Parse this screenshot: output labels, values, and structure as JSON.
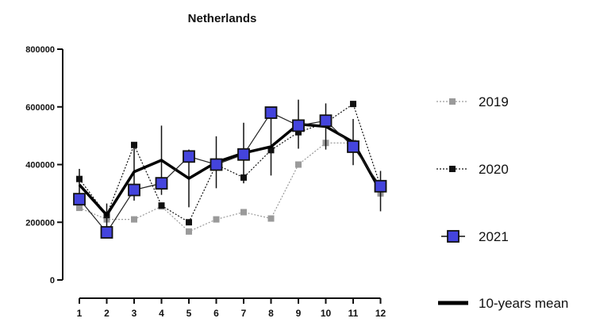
{
  "chart_data": {
    "type": "line",
    "title": "Netherlands",
    "xlabel": "",
    "ylabel": "",
    "x": [
      1,
      2,
      3,
      4,
      5,
      6,
      7,
      8,
      9,
      10,
      11,
      12
    ],
    "x_tick_labels": [
      "1",
      "2",
      "3",
      "4",
      "5",
      "6",
      "7",
      "8",
      "9",
      "10",
      "11",
      "12"
    ],
    "ylim": [
      0,
      800000
    ],
    "y_ticks": [
      0,
      200000,
      400000,
      600000,
      800000
    ],
    "y_tick_labels": [
      "0",
      "200000",
      "400000",
      "600000",
      "800000"
    ],
    "grid": false,
    "legend_position": "right",
    "series": [
      {
        "name": "2019",
        "style": "dotted-square",
        "color": "#9a9a9a",
        "values": [
          250000,
          210000,
          210000,
          255000,
          168000,
          210000,
          235000,
          213000,
          400000,
          475000,
          475000,
          300000
        ]
      },
      {
        "name": "2020",
        "style": "dotted-square",
        "color": "#111111",
        "values": [
          350000,
          225000,
          468000,
          258000,
          200000,
          400000,
          355000,
          450000,
          512000,
          545000,
          610000,
          325000
        ]
      },
      {
        "name": "2021",
        "style": "solid-square-blue",
        "color": "#4444dd",
        "values": [
          280000,
          165000,
          312000,
          335000,
          428000,
          400000,
          435000,
          580000,
          535000,
          552000,
          462000,
          325000
        ]
      },
      {
        "name": "10-years mean",
        "style": "thick-line",
        "color": "#000000",
        "values": [
          330000,
          225000,
          375000,
          415000,
          352000,
          408000,
          440000,
          462000,
          540000,
          532000,
          478000,
          308000
        ],
        "error": [
          55000,
          40000,
          100000,
          120000,
          100000,
          90000,
          105000,
          100000,
          85000,
          80000,
          80000,
          70000
        ]
      }
    ]
  }
}
